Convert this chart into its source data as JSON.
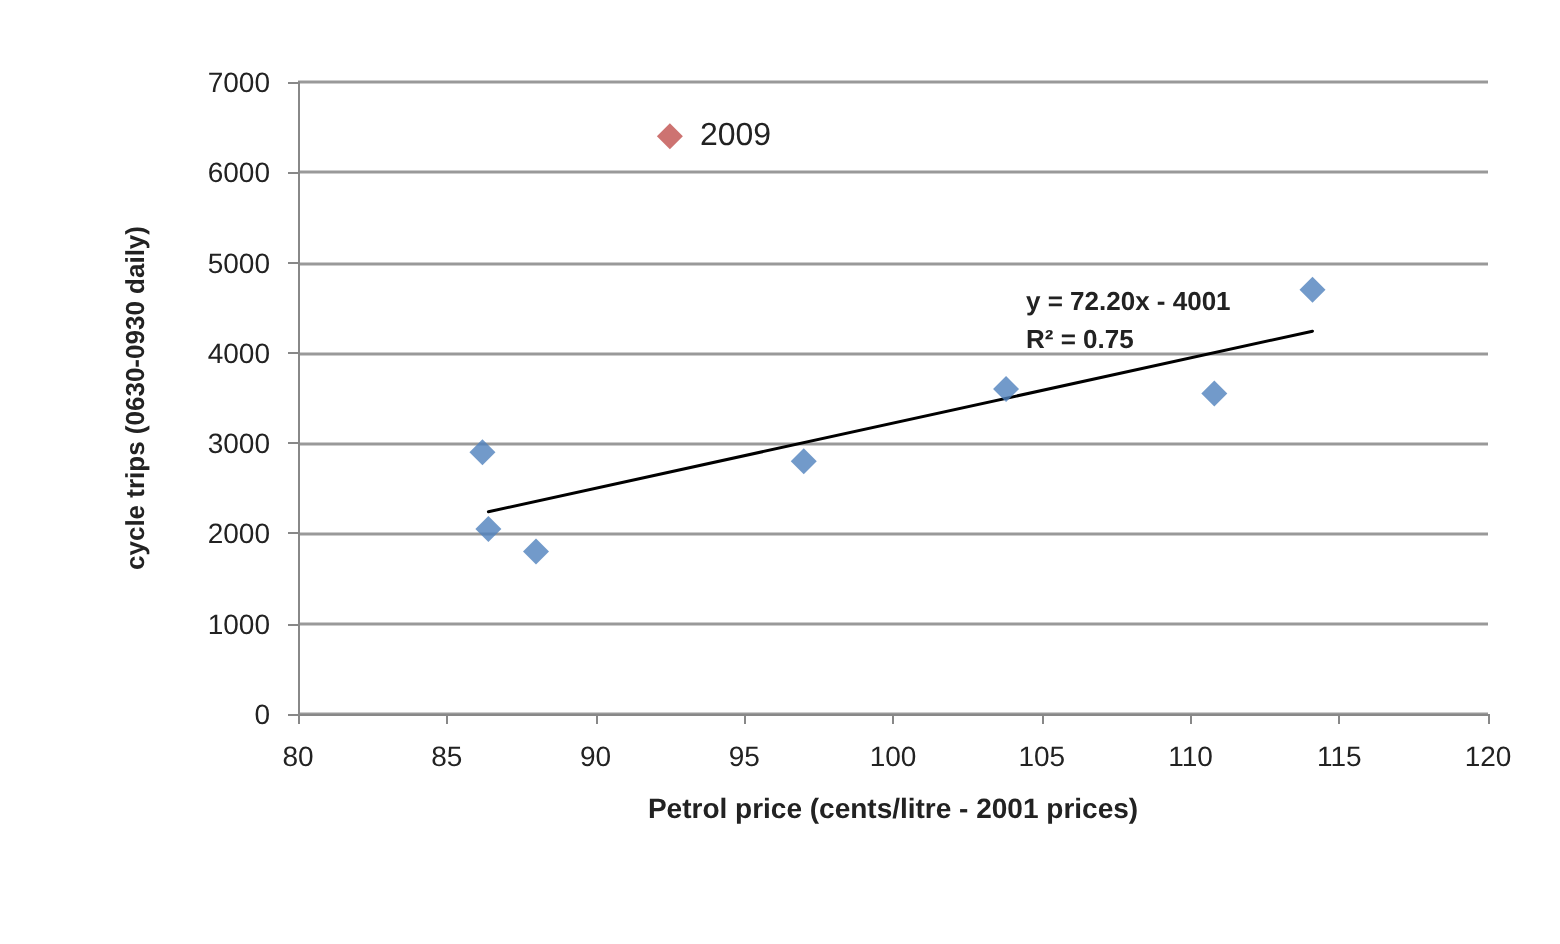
{
  "chart_data": {
    "type": "scatter",
    "xlabel": "Petrol price (cents/litre - 2001 prices)",
    "ylabel": "cycle trips (0630-0930 daily)",
    "xlim": [
      80,
      120
    ],
    "xticks": [
      80,
      85,
      90,
      95,
      100,
      105,
      110,
      115,
      120
    ],
    "ylim": [
      0,
      7000
    ],
    "yticks": [
      0,
      1000,
      2000,
      3000,
      4000,
      5000,
      6000,
      7000
    ],
    "grid": "y",
    "marker": "diamond",
    "series": [
      {
        "color": "#4f81bd",
        "x": [
          86.2,
          86.4,
          88.0,
          97.0,
          103.8,
          110.8,
          114.1
        ],
        "values": [
          2900,
          2050,
          1800,
          2800,
          3600,
          3550,
          4700
        ]
      },
      {
        "color": "#c0504d",
        "x": [
          92.5
        ],
        "values": [
          6400
        ]
      },
      {
        "type": "line",
        "marker": "none",
        "line_style": "solid",
        "color": "#000000",
        "x": [
          86.4,
          114.1
        ],
        "values": [
          2240,
          4240
        ]
      }
    ],
    "annotations": [
      {
        "text": "2009",
        "x": 92.5,
        "y": 6400
      },
      "y = 72.20x - 4001",
      "R² = 0.75"
    ]
  }
}
